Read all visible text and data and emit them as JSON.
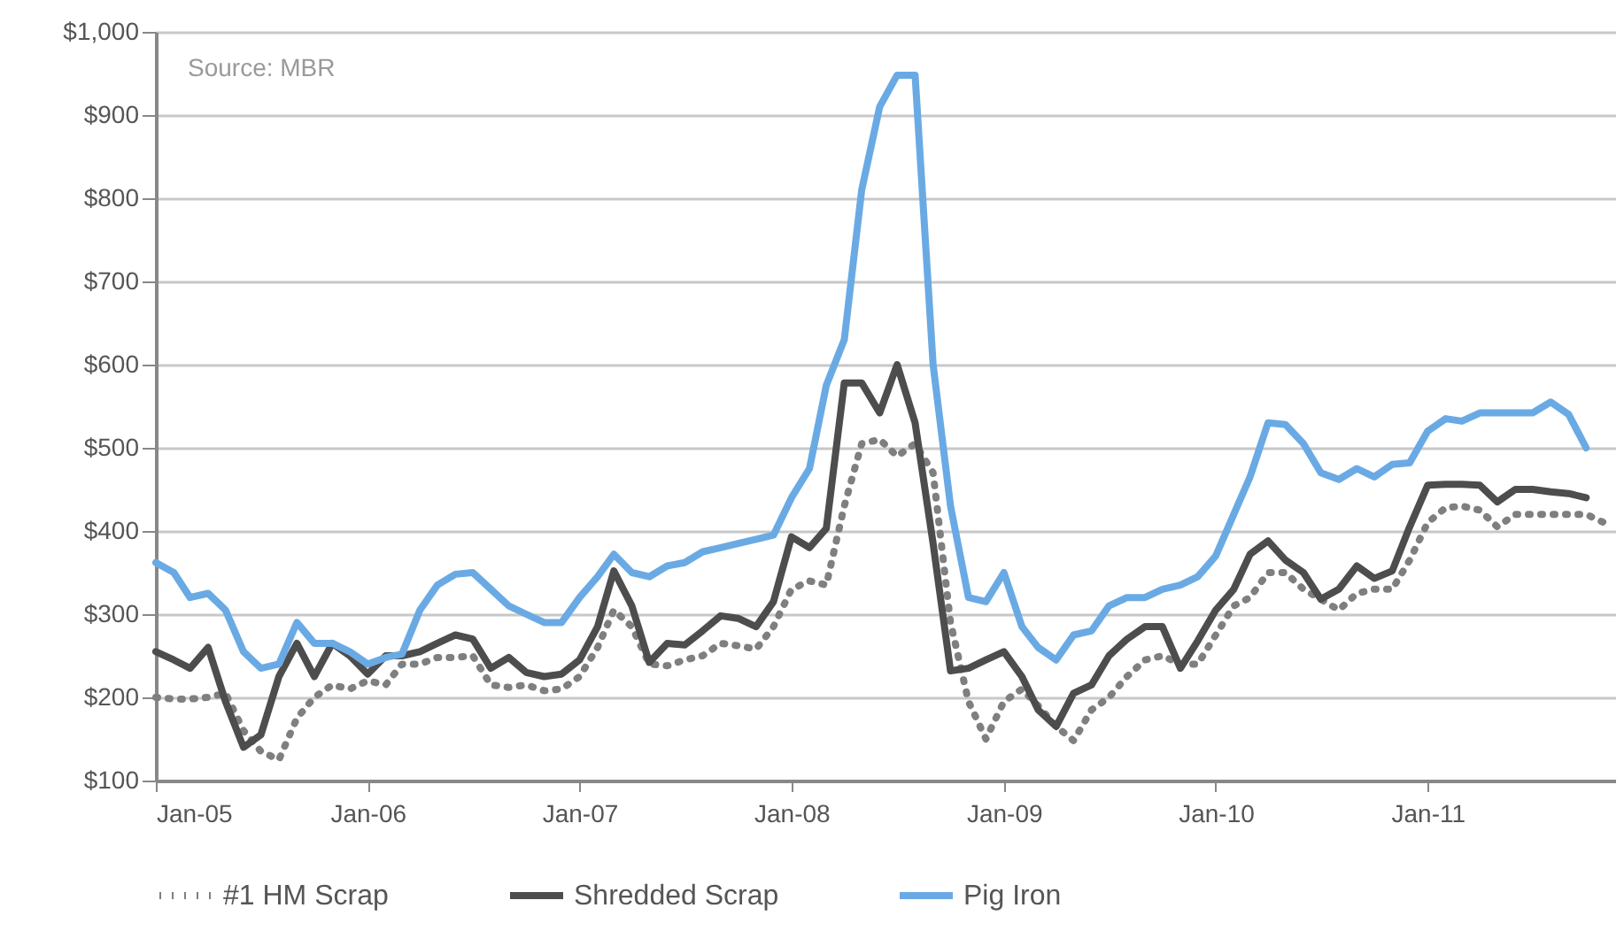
{
  "chart_data": {
    "type": "line",
    "annotations": [
      "Source: MBR"
    ],
    "x": [
      "2005-01",
      "2005-02",
      "2005-03",
      "2005-04",
      "2005-05",
      "2005-06",
      "2005-07",
      "2005-08",
      "2005-09",
      "2005-10",
      "2005-11",
      "2005-12",
      "2006-01",
      "2006-02",
      "2006-03",
      "2006-04",
      "2006-05",
      "2006-06",
      "2006-07",
      "2006-08",
      "2006-09",
      "2006-10",
      "2006-11",
      "2006-12",
      "2007-01",
      "2007-02",
      "2007-03",
      "2007-04",
      "2007-05",
      "2007-06",
      "2007-07",
      "2007-08",
      "2007-09",
      "2007-10",
      "2007-11",
      "2007-12",
      "2008-01",
      "2008-02",
      "2008-03",
      "2008-04",
      "2008-05",
      "2008-06",
      "2008-07",
      "2008-08",
      "2008-09",
      "2008-10",
      "2008-11",
      "2008-12",
      "2009-01",
      "2009-02",
      "2009-03",
      "2009-04",
      "2009-05",
      "2009-06",
      "2009-07",
      "2009-08",
      "2009-09",
      "2009-10",
      "2009-11",
      "2009-12",
      "2010-01",
      "2010-02",
      "2010-03",
      "2010-04",
      "2010-05",
      "2010-06",
      "2010-07",
      "2010-08",
      "2010-09",
      "2010-10",
      "2010-11",
      "2010-12",
      "2011-01",
      "2011-02",
      "2011-03",
      "2011-04",
      "2011-05",
      "2011-06",
      "2011-07",
      "2011-08",
      "2011-09",
      "2011-10",
      "2011-11"
    ],
    "series": [
      {
        "name": "#1 HM Scrap",
        "color": "#7f7f7f",
        "line_style": "dotted",
        "values": [
          200,
          198,
          198,
          200,
          205,
          160,
          135,
          125,
          175,
          200,
          215,
          210,
          220,
          215,
          240,
          240,
          248,
          248,
          250,
          215,
          212,
          215,
          208,
          210,
          225,
          260,
          305,
          285,
          240,
          238,
          245,
          250,
          265,
          262,
          258,
          285,
          330,
          340,
          335,
          430,
          505,
          510,
          490,
          505,
          470,
          290,
          195,
          150,
          195,
          210,
          190,
          165,
          148,
          185,
          200,
          225,
          245,
          250,
          240,
          240,
          275,
          310,
          320,
          350,
          350,
          330,
          318,
          305,
          325,
          330,
          330,
          365,
          410,
          428,
          430,
          425,
          405,
          420,
          420,
          420,
          420,
          420,
          410
        ]
      },
      {
        "name": "Shredded Scrap",
        "color": "#4d4d4d",
        "line_style": "solid",
        "values": [
          255,
          245,
          235,
          260,
          195,
          140,
          155,
          225,
          265,
          225,
          265,
          250,
          228,
          250,
          250,
          255,
          265,
          275,
          270,
          235,
          248,
          230,
          225,
          228,
          245,
          285,
          352,
          310,
          242,
          265,
          263,
          280,
          298,
          295,
          285,
          315,
          393,
          380,
          403,
          578,
          578,
          542,
          600,
          530,
          385,
          232,
          235,
          245,
          255,
          225,
          185,
          165,
          205,
          215,
          250,
          270,
          285,
          285,
          235,
          268,
          305,
          330,
          372,
          388,
          365,
          350,
          318,
          330,
          358,
          343,
          352,
          405,
          455,
          456,
          456,
          455,
          435,
          450,
          450,
          447,
          445,
          440,
          null
        ]
      },
      {
        "name": "Pig Iron",
        "color": "#6aaae4",
        "line_style": "solid",
        "values": [
          362,
          350,
          320,
          325,
          305,
          255,
          235,
          240,
          290,
          265,
          265,
          255,
          240,
          248,
          252,
          305,
          335,
          348,
          350,
          330,
          310,
          300,
          290,
          290,
          320,
          345,
          372,
          350,
          345,
          358,
          362,
          375,
          380,
          385,
          390,
          395,
          440,
          475,
          575,
          630,
          810,
          910,
          948,
          948,
          600,
          430,
          320,
          315,
          350,
          285,
          260,
          245,
          275,
          280,
          310,
          320,
          320,
          330,
          335,
          345,
          370,
          420,
          465,
          530,
          528,
          505,
          470,
          462,
          475,
          465,
          480,
          482,
          520,
          535,
          532,
          542,
          542,
          542,
          542,
          555,
          540,
          500,
          null
        ]
      }
    ],
    "xlim": [
      "2005-01",
      "2011-11-20"
    ],
    "xticks": [
      {
        "value": "2005-01",
        "label": "Jan-05"
      },
      {
        "value": "2006-01",
        "label": "Jan-06"
      },
      {
        "value": "2007-01",
        "label": "Jan-07"
      },
      {
        "value": "2008-01",
        "label": "Jan-08"
      },
      {
        "value": "2009-01",
        "label": "Jan-09"
      },
      {
        "value": "2010-01",
        "label": "Jan-10"
      },
      {
        "value": "2011-01",
        "label": "Jan-11"
      }
    ],
    "ylim": [
      100,
      1000
    ],
    "yticks": [
      {
        "value": 100,
        "label": "$100"
      },
      {
        "value": 200,
        "label": "$200"
      },
      {
        "value": 300,
        "label": "$300"
      },
      {
        "value": 400,
        "label": "$400"
      },
      {
        "value": 500,
        "label": "$500"
      },
      {
        "value": 600,
        "label": "$600"
      },
      {
        "value": 700,
        "label": "$700"
      },
      {
        "value": 800,
        "label": "$800"
      },
      {
        "value": 900,
        "label": "$900"
      },
      {
        "value": 1000,
        "label": "$1,000"
      }
    ],
    "grid": "y",
    "legend": "bottom",
    "marker": "none"
  }
}
